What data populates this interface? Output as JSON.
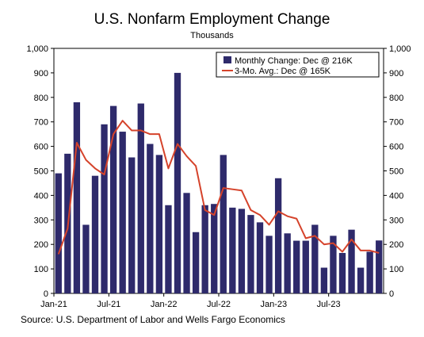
{
  "chart_data": {
    "type": "bar",
    "title": "U.S. Nonfarm Employment Change",
    "subtitle": "Thousands",
    "source": "Source: U.S. Department of Labor and Wells Fargo Economics",
    "ylim": [
      0,
      1000
    ],
    "yticks": [
      "0",
      "100",
      "200",
      "300",
      "400",
      "500",
      "600",
      "700",
      "800",
      "900",
      "1,000"
    ],
    "xtick_labels": [
      {
        "label": "Jan-21",
        "index": 0
      },
      {
        "label": "Jul-21",
        "index": 6
      },
      {
        "label": "Jan-22",
        "index": 12
      },
      {
        "label": "Jul-22",
        "index": 18
      },
      {
        "label": "Jan-23",
        "index": 24
      },
      {
        "label": "Jul-23",
        "index": 30
      }
    ],
    "colors": {
      "bars": "#2e2a6b",
      "line": "#d5432b"
    },
    "series": [
      {
        "name": "Monthly Change: Dec @ 216K",
        "type": "bar",
        "values": [
          490,
          570,
          780,
          280,
          480,
          690,
          765,
          660,
          555,
          775,
          610,
          565,
          360,
          900,
          410,
          250,
          360,
          365,
          565,
          350,
          345,
          320,
          290,
          235,
          470,
          245,
          215,
          215,
          280,
          105,
          235,
          165,
          260,
          105,
          170,
          216
        ]
      },
      {
        "name": "3-Mo. Avg.: Dec @ 165K",
        "type": "line",
        "values": [
          160,
          265,
          615,
          545,
          510,
          485,
          650,
          705,
          665,
          665,
          650,
          650,
          510,
          610,
          560,
          520,
          340,
          320,
          430,
          425,
          420,
          340,
          320,
          280,
          335,
          315,
          305,
          225,
          235,
          200,
          205,
          170,
          220,
          175,
          175,
          165
        ]
      }
    ]
  }
}
